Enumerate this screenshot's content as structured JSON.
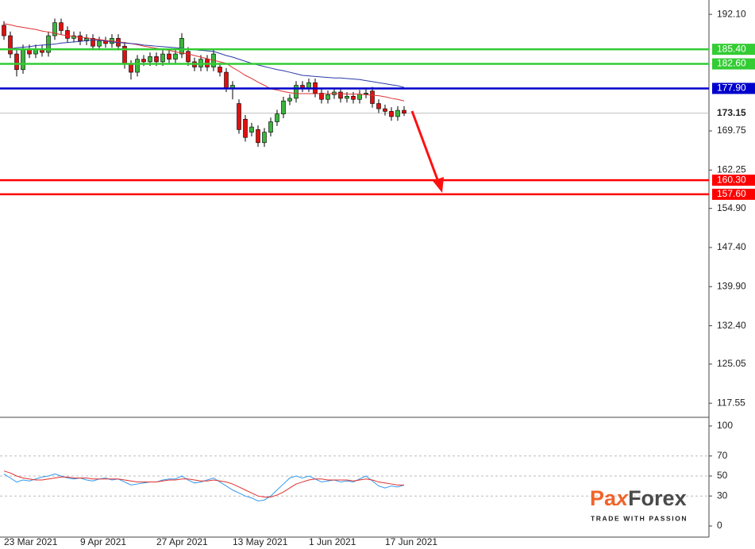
{
  "chart_data": [
    {
      "type": "candlestick",
      "categories": [
        "23 Mar 2021",
        null,
        null,
        null,
        null,
        null,
        null,
        null,
        null,
        null,
        null,
        null,
        "9 Apr 2021",
        null,
        null,
        null,
        null,
        null,
        null,
        null,
        null,
        null,
        null,
        null,
        "27 Apr 2021",
        null,
        null,
        null,
        null,
        null,
        null,
        null,
        null,
        null,
        null,
        null,
        "13 May 2021",
        null,
        null,
        null,
        null,
        null,
        null,
        null,
        null,
        null,
        null,
        null,
        "1 Jun 2021",
        null,
        null,
        null,
        null,
        null,
        null,
        null,
        null,
        null,
        null,
        null,
        "17 Jun 2021",
        null,
        null,
        null
      ],
      "open": [
        190,
        188,
        184.5,
        181.5,
        185.5,
        184.5,
        185.5,
        184.8,
        188,
        190.5,
        189,
        187.5,
        188,
        187,
        187.5,
        186,
        187,
        186.5,
        187.5,
        186,
        182.5,
        181,
        183.5,
        183,
        184,
        183,
        184.5,
        183.5,
        184.5,
        185,
        183,
        182,
        183.5,
        182,
        182,
        181,
        178,
        175,
        172,
        169.5,
        170,
        167.5,
        169.5,
        171.5,
        173,
        175.5,
        176,
        178.5,
        178,
        179,
        177,
        175.8,
        176.7,
        177.2,
        176,
        176.4,
        175.8,
        176.8,
        177.4,
        175,
        174,
        173.5,
        172.5,
        173.7
      ],
      "high": [
        190.8,
        188.8,
        185.3,
        186.3,
        186.3,
        186.3,
        186.3,
        188.8,
        191.3,
        191.3,
        189.8,
        188.8,
        188.8,
        188.3,
        188.3,
        187.8,
        187.8,
        188.3,
        188.3,
        186.8,
        183.3,
        184.3,
        184.3,
        184.8,
        184.8,
        185.3,
        185.3,
        185.3,
        188.5,
        185.8,
        183.8,
        184.3,
        184.3,
        185.5,
        182.8,
        181.8,
        179.3,
        175.8,
        172.8,
        171.3,
        170.8,
        170.3,
        172.3,
        173.8,
        176.3,
        176.8,
        179.3,
        179.3,
        179.8,
        179.8,
        177.8,
        177.5,
        178,
        178,
        177.2,
        177.2,
        177.6,
        177.8,
        178.2,
        175.8,
        174.8,
        174.3,
        174.5,
        174.5
      ],
      "low": [
        187.2,
        183.7,
        180.2,
        180.7,
        183.7,
        183.7,
        184,
        184,
        187.2,
        188.2,
        186.7,
        186.7,
        186.2,
        186.2,
        185.2,
        185.2,
        185.7,
        185.7,
        185.2,
        181.7,
        179.6,
        180.2,
        182.2,
        182.2,
        182.2,
        182.2,
        182.7,
        182.7,
        183.7,
        182.2,
        181.2,
        181.2,
        181.2,
        181.2,
        180.2,
        177.2,
        175.8,
        169.2,
        167.7,
        168.7,
        166.7,
        166.7,
        168.7,
        170.7,
        172.2,
        174.7,
        175.2,
        177.2,
        177.2,
        176.2,
        175,
        175,
        175.9,
        175.2,
        175.2,
        175,
        175,
        176,
        174.2,
        173.2,
        172.7,
        171.7,
        171.7,
        172.6
      ],
      "close": [
        188,
        184.5,
        181.5,
        185.5,
        184.5,
        185.5,
        184.8,
        188,
        190.5,
        189,
        187.5,
        188,
        187,
        187.5,
        186,
        187,
        186.5,
        187.5,
        186,
        182.5,
        181,
        183.5,
        183,
        184,
        183,
        184.5,
        183.5,
        184.5,
        187.5,
        183,
        182,
        183.5,
        182,
        184.5,
        181,
        178,
        178.5,
        170,
        168.5,
        170.5,
        167.5,
        169.5,
        171.5,
        173,
        175.5,
        176,
        178.5,
        178,
        179,
        177,
        175.8,
        176.7,
        177.2,
        176,
        176.4,
        175.8,
        176.8,
        177,
        175,
        174,
        173.5,
        172.5,
        173.7,
        173.15
      ],
      "up_color": "#3cb43c",
      "down_color": "#e01010",
      "series": [
        {
          "color": "#e03030",
          "values": [
            190.3,
            190.1,
            189.8,
            189.6,
            189.4,
            189.2,
            188.9,
            188.7,
            188.5,
            188.2,
            188.0,
            187.9,
            187.7,
            187.6,
            187.4,
            187.3,
            187.1,
            187.0,
            186.8,
            186.7,
            186.5,
            186.3,
            186.0,
            185.8,
            185.6,
            185.4,
            185.2,
            184.9,
            184.7,
            184.5,
            184.2,
            183.9,
            183.6,
            183.3,
            183.0,
            182.7,
            181.9,
            181.2,
            180.4,
            179.8,
            179.1,
            178.5,
            177.8,
            177.6,
            177.3,
            177.1,
            176.9,
            176.9,
            176.9,
            176.9,
            176.9,
            176.9,
            176.9,
            176.9,
            176.8,
            176.8,
            176.8,
            176.7,
            176.6,
            176.5,
            176.3,
            176.0,
            175.8,
            175.5
          ]
        },
        {
          "color": "#2a3aa8",
          "values": [
            185.4,
            185.5,
            185.7,
            185.8,
            185.9,
            186.1,
            186.2,
            186.3,
            186.4,
            186.6,
            186.7,
            186.8,
            186.9,
            187.1,
            187.2,
            187.1,
            187.0,
            186.8,
            186.7,
            186.6,
            186.5,
            186.4,
            186.2,
            186.1,
            186.0,
            185.9,
            185.8,
            185.7,
            185.6,
            185.4,
            185.3,
            185.2,
            185.1,
            185.0,
            184.6,
            184.2,
            183.9,
            183.5,
            183.1,
            182.7,
            182.4,
            182.1,
            181.8,
            181.5,
            181.3,
            181.0,
            180.7,
            180.4,
            180.3,
            180.2,
            180.1,
            180.0,
            179.9,
            179.9,
            179.8,
            179.7,
            179.6,
            179.4,
            179.2,
            179.0,
            178.8,
            178.6,
            178.4,
            178.1
          ]
        }
      ],
      "levels": [
        {
          "value": 185.4,
          "label": "185.40",
          "color": "#33cc33"
        },
        {
          "value": 182.6,
          "label": "182.60",
          "color": "#33cc33"
        },
        {
          "value": 177.9,
          "label": "177.90",
          "color": "#0000cc"
        },
        {
          "value": 160.3,
          "label": "160.30",
          "color": "#ff0000"
        },
        {
          "value": 157.6,
          "label": "157.60",
          "color": "#ff0000"
        }
      ],
      "current": {
        "value": 173.15,
        "label": "173.15"
      },
      "ylim": [
        115.0,
        194.85
      ],
      "yticks": [
        {
          "value": 192.1,
          "label": "192.10"
        },
        {
          "value": 169.75,
          "label": "169.75"
        },
        {
          "value": 162.25,
          "label": "162.25"
        },
        {
          "value": 154.9,
          "label": "154.90"
        },
        {
          "value": 147.4,
          "label": "147.40"
        },
        {
          "value": 139.9,
          "label": "139.90"
        },
        {
          "value": 132.4,
          "label": "132.40"
        },
        {
          "value": 125.05,
          "label": "125.05"
        },
        {
          "value": 117.55,
          "label": "117.55"
        }
      ]
    },
    {
      "type": "line",
      "series": [
        {
          "color": "#3399ee",
          "values": [
            52,
            48,
            44,
            46,
            45,
            47,
            49,
            50,
            52,
            50,
            48,
            47,
            48,
            46,
            45,
            47,
            48,
            46,
            47,
            44,
            41,
            42,
            43,
            44,
            44,
            46,
            47,
            47,
            50,
            46,
            43,
            44,
            46,
            48,
            44,
            40,
            36,
            33,
            30,
            28,
            25,
            26,
            30,
            36,
            42,
            48,
            50,
            48,
            50,
            47,
            44,
            45,
            46,
            44,
            45,
            44,
            47,
            50,
            45,
            40,
            38,
            40,
            39,
            41
          ]
        },
        {
          "color": "#e03030",
          "values": [
            55,
            53,
            50,
            48,
            47,
            46,
            46,
            47,
            48,
            49,
            49,
            48,
            48,
            48,
            47,
            47,
            47,
            47,
            47,
            46,
            45,
            44,
            44,
            44,
            44,
            45,
            46,
            46,
            47,
            47,
            46,
            45,
            45,
            46,
            45,
            44,
            42,
            39,
            36,
            33,
            30,
            29,
            29,
            31,
            34,
            38,
            42,
            44,
            46,
            47,
            47,
            46,
            46,
            46,
            46,
            45,
            46,
            47,
            46,
            44,
            43,
            42,
            41,
            41
          ]
        }
      ],
      "levels": [
        30,
        50,
        70
      ],
      "ylim": [
        -11.1,
        107.1
      ],
      "yticks": [
        0,
        30,
        50,
        70,
        100
      ]
    }
  ],
  "logo": {
    "parts": [
      "Pa",
      "x",
      "Forex"
    ],
    "tagline": "TRADE WITH PASSION"
  }
}
